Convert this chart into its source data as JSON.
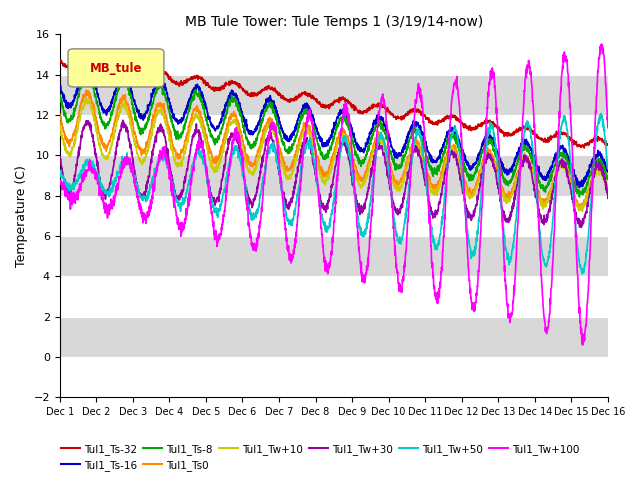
{
  "title": "MB Tule Tower: Tule Temps 1 (3/19/14-now)",
  "ylabel": "Temperature (C)",
  "xlim": [
    0,
    15
  ],
  "ylim": [
    -2,
    16
  ],
  "yticks": [
    -2,
    0,
    2,
    4,
    6,
    8,
    10,
    12,
    14,
    16
  ],
  "xtick_labels": [
    "Dec 1",
    "Dec 2",
    "Dec 3",
    "Dec 4",
    "Dec 5",
    "Dec 6",
    "Dec 7",
    "Dec 8",
    "Dec 9",
    "Dec 10",
    "Dec 11",
    "Dec 12",
    "Dec 13",
    "Dec 14",
    "Dec 15",
    "Dec 16"
  ],
  "series": {
    "Tul1_Ts-32": {
      "color": "#cc0000",
      "lw": 1.2
    },
    "Tul1_Ts-16": {
      "color": "#0000cc",
      "lw": 1.2
    },
    "Tul1_Ts-8": {
      "color": "#00aa00",
      "lw": 1.2
    },
    "Tul1_Ts0": {
      "color": "#ff8800",
      "lw": 1.2
    },
    "Tul1_Tw+10": {
      "color": "#cccc00",
      "lw": 1.2
    },
    "Tul1_Tw+30": {
      "color": "#9900aa",
      "lw": 1.2
    },
    "Tul1_Tw+50": {
      "color": "#00cccc",
      "lw": 1.2
    },
    "Tul1_Tw+100": {
      "color": "#ff00ff",
      "lw": 1.2
    }
  },
  "legend_box_color": "#ffff99",
  "legend_box_text": "MB_tule",
  "legend_box_text_color": "#cc0000",
  "background_color": "#ffffff",
  "plot_bg_color": "#e8e8e8",
  "figsize": [
    6.4,
    4.8
  ],
  "dpi": 100
}
